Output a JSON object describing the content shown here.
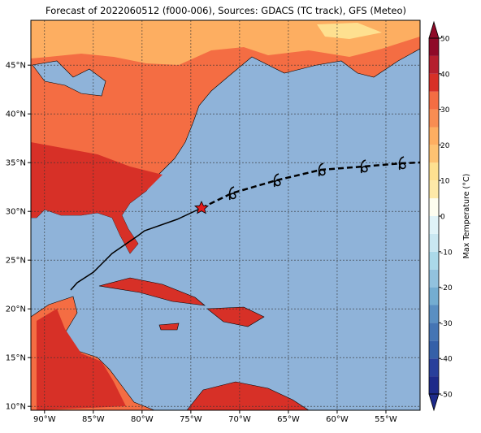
{
  "map": {
    "title": "Forecast of 2022060512 (f000-006), Sources: GDACS (TC track), GFS (Meteo)",
    "xlim": [
      -91.4,
      -51.5
    ],
    "ylim": [
      9.6,
      49.6
    ],
    "lon_ticks": [
      {
        "value": -90,
        "label": "90°W"
      },
      {
        "value": -85,
        "label": "85°W"
      },
      {
        "value": -80,
        "label": "80°W"
      },
      {
        "value": -75,
        "label": "75°W"
      },
      {
        "value": -70,
        "label": "70°W"
      },
      {
        "value": -65,
        "label": "65°W"
      },
      {
        "value": -60,
        "label": "60°W"
      },
      {
        "value": -55,
        "label": "55°W"
      }
    ],
    "lat_ticks": [
      {
        "value": 10,
        "label": "10°N"
      },
      {
        "value": 15,
        "label": "15°N"
      },
      {
        "value": 20,
        "label": "20°N"
      },
      {
        "value": 25,
        "label": "25°N"
      },
      {
        "value": 30,
        "label": "30°N"
      },
      {
        "value": 35,
        "label": "35°N"
      },
      {
        "value": 40,
        "label": "40°N"
      },
      {
        "value": 45,
        "label": "45°N"
      }
    ],
    "colorbar": {
      "label": "Max Temperature (°C)",
      "clim": [
        -50,
        50
      ],
      "ticks": [
        -50,
        -40,
        -30,
        -20,
        -10,
        0,
        10,
        20,
        30,
        40,
        50
      ],
      "colors": [
        "#1d2a8a",
        "#283f9b",
        "#3560a8",
        "#4575b4",
        "#5a8fc2",
        "#74add1",
        "#92c2de",
        "#abd9e9",
        "#c9e7f1",
        "#e0f3f8",
        "#fdfdf0",
        "#fee9a8",
        "#fee090",
        "#fdc272",
        "#fdae61",
        "#f88d52",
        "#f46d43",
        "#d73027",
        "#b51f2e",
        "#8f0a28"
      ]
    }
  }
}
